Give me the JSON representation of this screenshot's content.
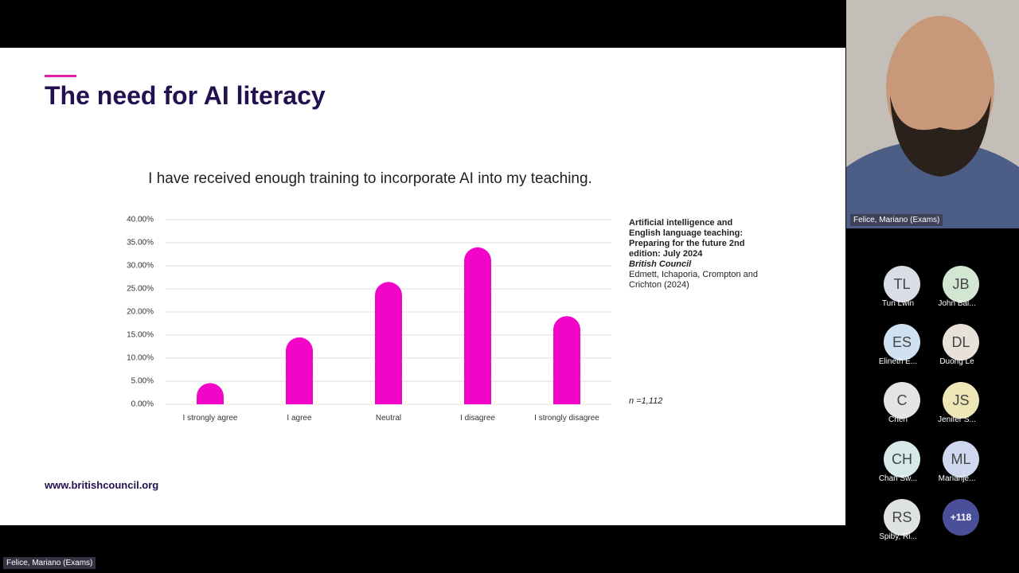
{
  "slide": {
    "title": "The need for AI literacy",
    "url": "www.britishcouncil.org",
    "source": {
      "title": "Artificial intelligence and English language teaching: Preparing for the future 2nd edition: July 2024",
      "publisher": "British Council",
      "authors": "Edmett, Ichaporia, Crompton and Crichton (2024)"
    },
    "sample": "n =1,112"
  },
  "chart_data": {
    "type": "bar",
    "title": "I have received enough training to incorporate AI into my teaching.",
    "categories": [
      "I strongly agree",
      "I agree",
      "Neutral",
      "I disagree",
      "I strongly disagree"
    ],
    "values": [
      4.6,
      14.5,
      26.5,
      34.0,
      19.1
    ],
    "color": "#f205c8",
    "ylim": [
      0,
      40
    ],
    "yticks": [
      {
        "value": 0,
        "label": "0.00%"
      },
      {
        "value": 5,
        "label": "5.00%"
      },
      {
        "value": 10,
        "label": "10.00%"
      },
      {
        "value": 15,
        "label": "15.00%"
      },
      {
        "value": 20,
        "label": "20.00%"
      },
      {
        "value": 25,
        "label": "25.00%"
      },
      {
        "value": 30,
        "label": "30.00%"
      },
      {
        "value": 35,
        "label": "35.00%"
      },
      {
        "value": 40,
        "label": "40.00%"
      }
    ],
    "grid": true
  },
  "video": {
    "speaker": "Felice, Mariano (Exams)",
    "self_label": "Felice, Mariano (Exams)"
  },
  "participants": [
    {
      "initials": "TL",
      "name": "Tun Lwin",
      "color": "#d9dde6"
    },
    {
      "initials": "JB",
      "name": "John Bal...",
      "color": "#d3e6d2"
    },
    {
      "initials": "ES",
      "name": "Elineth E...",
      "color": "#cfe0f0"
    },
    {
      "initials": "DL",
      "name": "Duong Le",
      "color": "#e8e1da"
    },
    {
      "initials": "C",
      "name": "Chen",
      "color": "#e4e4e4"
    },
    {
      "initials": "JS",
      "name": "Jenifer S...",
      "color": "#efe6b8"
    },
    {
      "initials": "CH",
      "name": "Chan Sw...",
      "color": "#d6e8e8"
    },
    {
      "initials": "ML",
      "name": "Marianje...",
      "color": "#cfd8ee"
    },
    {
      "initials": "RS",
      "name": "Spiby, Ri...",
      "color": "#dfe3df"
    }
  ],
  "more_participants": "+118"
}
